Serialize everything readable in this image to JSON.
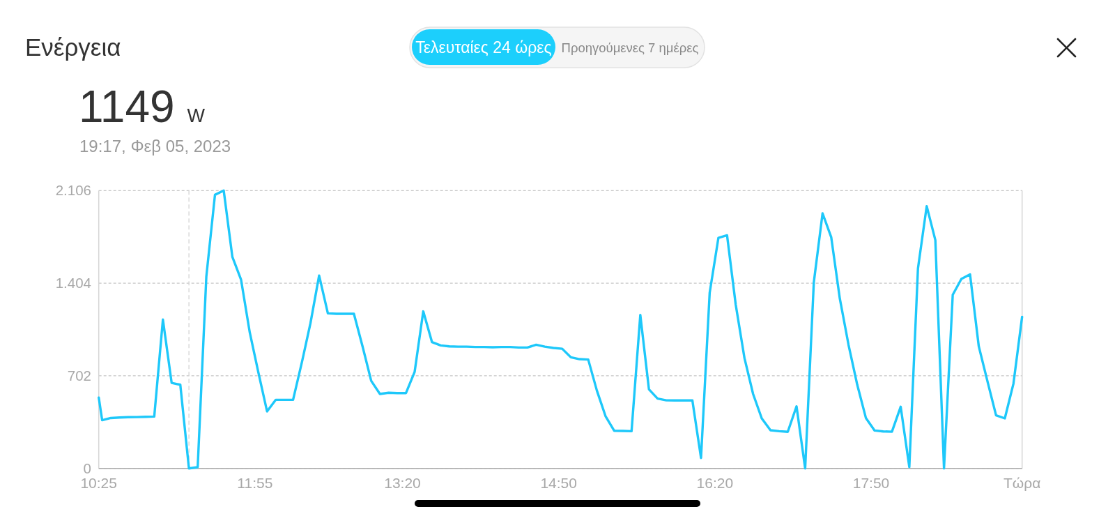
{
  "chart_data": {
    "type": "line",
    "title": "Ενέργεια",
    "subtitle": "1149 W",
    "annotations": [
      "19:17, Φεβ 05, 2023",
      "Τελευταίες 24 ώρες",
      "Προηγούμενες 7 ημέρες"
    ],
    "x": [
      10.417,
      10.45,
      10.533,
      10.617,
      10.7,
      10.783,
      10.867,
      10.95,
      11.033,
      11.117,
      11.2,
      11.283,
      11.367,
      11.45,
      11.533,
      11.617,
      11.7,
      11.783,
      11.867,
      11.95,
      12.033,
      12.117,
      12.2,
      12.283,
      12.367,
      12.45,
      12.533,
      12.617,
      12.7,
      12.783,
      12.867,
      12.95,
      13.033,
      13.117,
      13.2,
      13.283,
      13.367,
      13.45,
      13.533,
      13.617,
      13.7,
      13.783,
      13.867,
      13.95,
      14.033,
      14.117,
      14.2,
      14.283,
      14.367,
      14.45,
      14.533,
      14.617,
      14.7,
      14.783,
      14.867,
      14.95,
      15.033,
      15.117,
      15.2,
      15.283,
      15.367,
      15.45,
      15.533,
      15.617,
      15.7,
      15.783,
      15.867,
      15.95,
      16.033,
      16.117,
      16.2,
      16.283,
      16.367,
      16.45,
      16.533,
      16.617,
      16.7,
      16.783,
      16.867,
      16.95,
      17.033,
      17.117,
      17.2,
      17.283,
      17.367,
      17.45,
      17.533,
      17.617,
      17.7,
      17.783,
      17.867,
      17.95,
      18.033,
      18.117,
      18.2,
      18.283,
      18.367,
      18.45,
      18.533,
      18.617,
      18.7,
      18.783,
      18.867,
      18.95,
      19.033,
      19.117,
      19.2,
      19.283
    ],
    "values": [
      537,
      365,
      382,
      386,
      388,
      389,
      391,
      393,
      1128,
      648,
      634,
      0,
      9,
      1454,
      2074,
      2106,
      1603,
      1432,
      1031,
      726,
      432,
      520,
      520,
      520,
      802,
      1101,
      1462,
      1175,
      1172,
      1172,
      1172,
      925,
      664,
      564,
      573,
      571,
      571,
      731,
      1190,
      957,
      932,
      925,
      923,
      923,
      920,
      920,
      918,
      920,
      920,
      916,
      916,
      937,
      923,
      913,
      907,
      842,
      828,
      825,
      590,
      396,
      285,
      284,
      282,
      1163,
      599,
      529,
      516,
      515,
      515,
      515,
      79,
      1330,
      1748,
      1767,
      1242,
      837,
      564,
      379,
      289,
      282,
      277,
      470,
      0,
      1410,
      1933,
      1753,
      1286,
      934,
      634,
      382,
      287,
      280,
      278,
      467,
      10,
      1515,
      1988,
      1730,
      0,
      1316,
      1436,
      1471,
      925,
      661,
      402,
      379,
      643,
      1149
    ],
    "color": "#1ec8fa",
    "line_style": "solid",
    "xlim": [
      10.417,
      19.283
    ],
    "xticks": [
      {
        "value": 10.417,
        "label": "10:25"
      },
      {
        "value": 11.917,
        "label": "11:55"
      },
      {
        "value": 13.333,
        "label": "13:20"
      },
      {
        "value": 14.833,
        "label": "14:50"
      },
      {
        "value": 16.333,
        "label": "16:20"
      },
      {
        "value": 17.833,
        "label": "17:50"
      },
      {
        "value": 19.283,
        "label": "Τώρα"
      }
    ],
    "ylim": [
      0,
      2106
    ],
    "yticks": [
      0,
      702,
      {
        "value": 1404,
        "label": "1.404"
      },
      {
        "value": 2106,
        "label": "2.106"
      }
    ],
    "grid": "y",
    "ref_lines": [
      {
        "axis": "x",
        "value": 11.283,
        "color": "#d4d4d4",
        "line_style": "dashed"
      }
    ]
  }
}
